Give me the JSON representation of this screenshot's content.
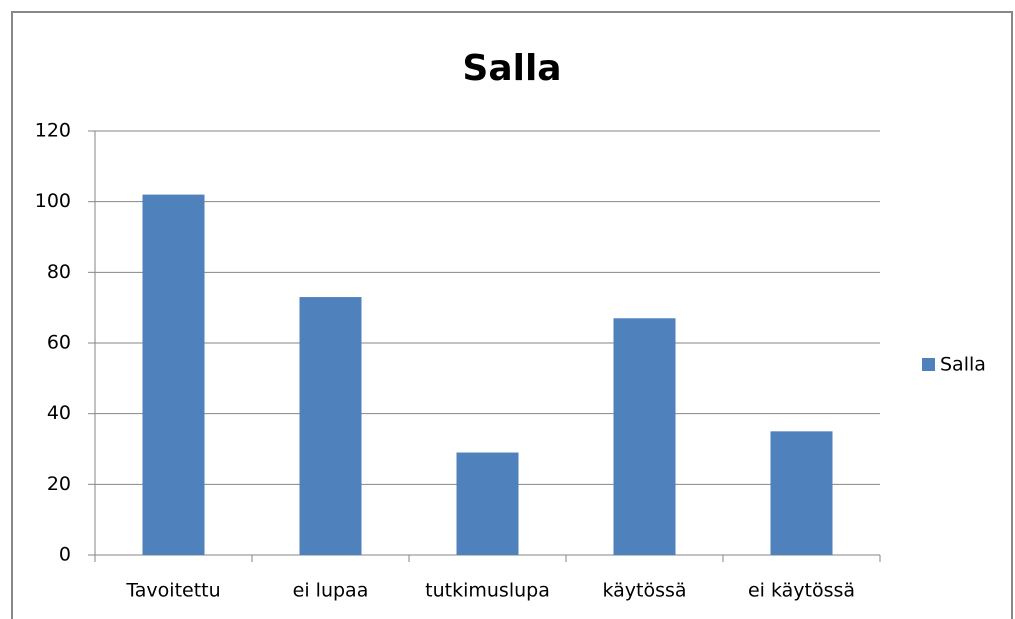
{
  "chart_data": {
    "type": "bar",
    "title": "Salla",
    "categories": [
      "Tavoitettu",
      "ei lupaa",
      "tutkimuslupa",
      "käytössä",
      "ei käytössä"
    ],
    "series": [
      {
        "name": "Salla",
        "color": "#4f81bd",
        "values": [
          102,
          73,
          29,
          67,
          35
        ]
      }
    ],
    "ylim": [
      0,
      120
    ],
    "yticks": [
      0,
      20,
      40,
      60,
      80,
      100,
      120
    ],
    "grid": true,
    "legend": "right"
  }
}
